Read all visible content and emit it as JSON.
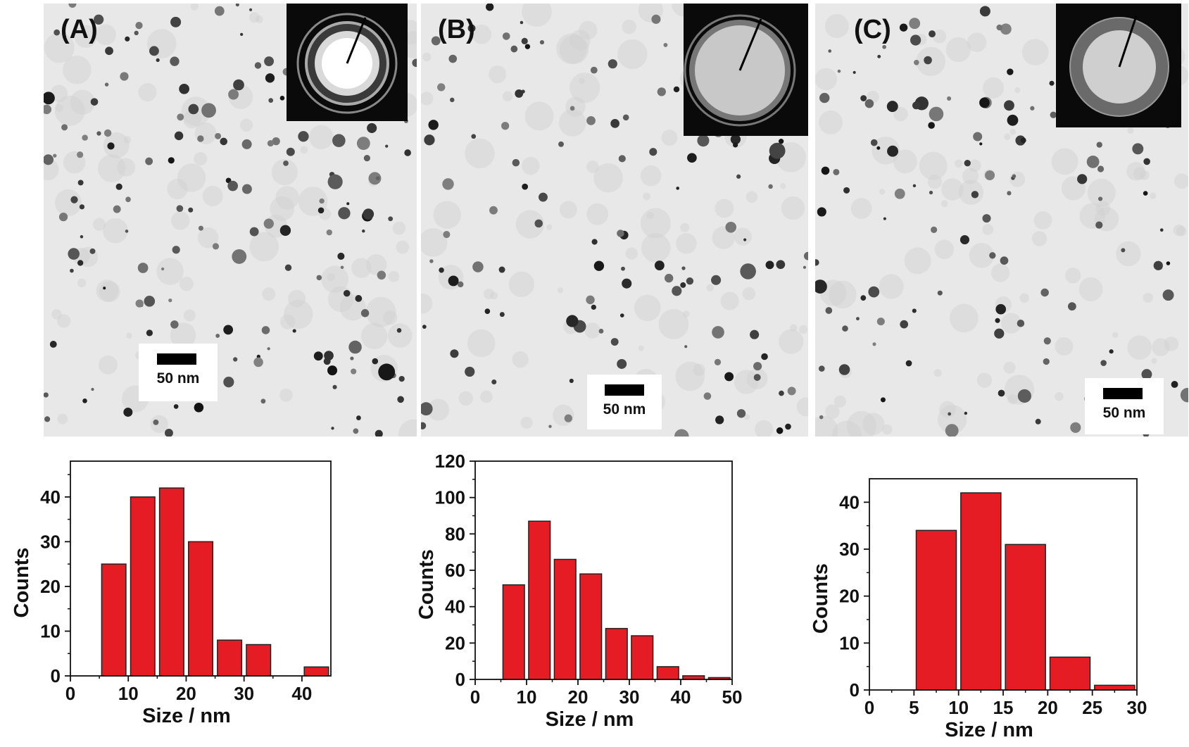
{
  "panels": [
    {
      "label": "(A)",
      "scale_bar": "50 nm",
      "seed": 11,
      "dots": 170
    },
    {
      "label": "(B)",
      "scale_bar": "50 nm",
      "seed": 29,
      "dots": 120
    },
    {
      "label": "(C)",
      "scale_bar": "50 nm",
      "seed": 47,
      "dots": 130
    }
  ],
  "colors": {
    "bar_fill": "#e51c23",
    "bar_stroke": "#222222",
    "axis": "#111111"
  },
  "chart_data": [
    {
      "type": "bar",
      "xlabel": "Size / nm",
      "ylabel": "Counts",
      "xlim": [
        0,
        45
      ],
      "ylim": [
        0,
        48
      ],
      "xticks": [
        0,
        10,
        20,
        30,
        40
      ],
      "yticks": [
        0,
        10,
        20,
        30,
        40
      ],
      "bin_width": 4.2,
      "bins": [
        {
          "x": 7.5,
          "value": 25
        },
        {
          "x": 12.5,
          "value": 40
        },
        {
          "x": 17.5,
          "value": 42
        },
        {
          "x": 22.5,
          "value": 30
        },
        {
          "x": 27.5,
          "value": 8
        },
        {
          "x": 32.5,
          "value": 7
        },
        {
          "x": 42.5,
          "value": 2
        }
      ]
    },
    {
      "type": "bar",
      "xlabel": "Size / nm",
      "ylabel": "Counts",
      "xlim": [
        0,
        50
      ],
      "ylim": [
        0,
        120
      ],
      "xticks": [
        0,
        10,
        20,
        30,
        40,
        50
      ],
      "yticks": [
        0,
        20,
        40,
        60,
        80,
        100,
        120
      ],
      "bin_width": 4.2,
      "bins": [
        {
          "x": 7.5,
          "value": 52
        },
        {
          "x": 12.5,
          "value": 87
        },
        {
          "x": 17.5,
          "value": 66
        },
        {
          "x": 22.5,
          "value": 58
        },
        {
          "x": 27.5,
          "value": 28
        },
        {
          "x": 32.5,
          "value": 24
        },
        {
          "x": 37.5,
          "value": 7
        },
        {
          "x": 42.5,
          "value": 2
        },
        {
          "x": 47.5,
          "value": 1
        }
      ]
    },
    {
      "type": "bar",
      "xlabel": "Size / nm",
      "ylabel": "Counts",
      "xlim": [
        0,
        30
      ],
      "ylim": [
        0,
        45
      ],
      "xticks": [
        0,
        5,
        10,
        15,
        20,
        25,
        30
      ],
      "yticks": [
        0,
        10,
        20,
        30,
        40
      ],
      "bin_width": 4.5,
      "bins": [
        {
          "x": 7.5,
          "value": 34
        },
        {
          "x": 12.5,
          "value": 42
        },
        {
          "x": 17.5,
          "value": 31
        },
        {
          "x": 22.5,
          "value": 7
        },
        {
          "x": 27.5,
          "value": 1
        }
      ]
    }
  ]
}
